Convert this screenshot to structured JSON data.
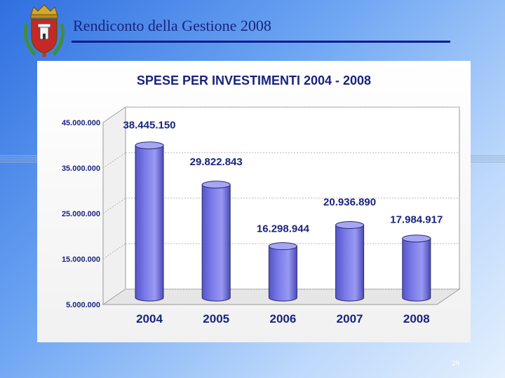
{
  "slide": {
    "title": "Rendiconto della Gestione 2008",
    "page_number": "29"
  },
  "colors": {
    "title": "#1a237e",
    "rule": "#0d1a8c",
    "bar": "#7b7bea",
    "bar_top": "#a6a6f5"
  },
  "chart_data": {
    "type": "bar",
    "title": "SPESE PER INVESTIMENTI 2004 - 2008",
    "categories": [
      "2004",
      "2005",
      "2006",
      "2007",
      "2008"
    ],
    "values": [
      38445150,
      29822843,
      16298944,
      20936890,
      17984917
    ],
    "value_labels": [
      "38.445.150",
      "29.822.843",
      "16.298.944",
      "20.936.890",
      "17.984.917"
    ],
    "y_ticks": [
      5000000,
      15000000,
      25000000,
      35000000,
      45000000
    ],
    "y_tick_labels": [
      "5.000.000",
      "15.000.000",
      "25.000.000",
      "35.000.000",
      "45.000.000"
    ],
    "ylim": [
      5000000,
      45000000
    ],
    "grid": true,
    "legend": "none",
    "style": "3d-cylinder"
  }
}
